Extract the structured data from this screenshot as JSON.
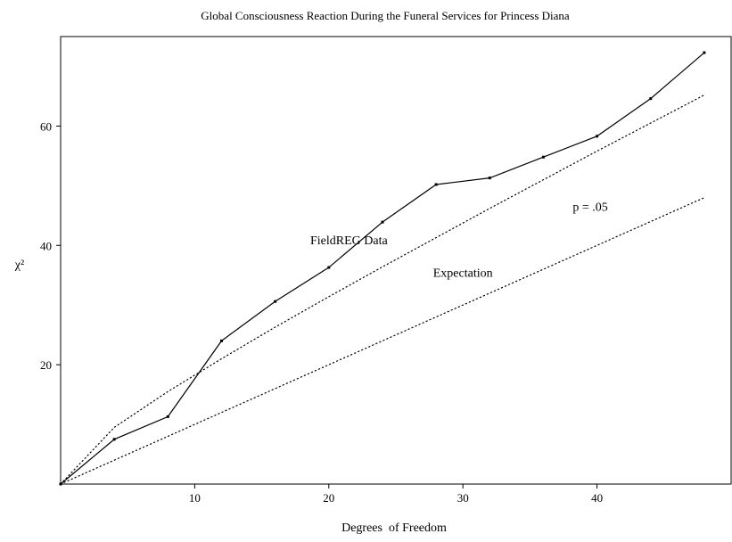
{
  "chart_data": {
    "type": "line",
    "title": "Global Consciousness Reaction During the Funeral Services for Princess Diana",
    "xlabel": "Degrees  of Freedom",
    "ylabel": "χ²",
    "xlim": [
      0,
      50
    ],
    "ylim": [
      0,
      75
    ],
    "x_ticks": [
      10,
      20,
      30,
      40
    ],
    "y_ticks": [
      20,
      40,
      60
    ],
    "grid": false,
    "series": [
      {
        "name": "FieldREG Data",
        "style": "solid-with-markers",
        "x": [
          0,
          4,
          8,
          12,
          16,
          20,
          24,
          28,
          32,
          36,
          40,
          44,
          48
        ],
        "y": [
          0,
          7.5,
          11.3,
          24.0,
          30.6,
          36.3,
          43.9,
          50.2,
          51.3,
          54.8,
          58.3,
          64.6,
          72.3
        ]
      },
      {
        "name": "p = .05",
        "style": "dotted",
        "x": [
          0,
          4,
          8,
          12,
          16,
          20,
          24,
          28,
          32,
          36,
          40,
          44,
          48
        ],
        "y": [
          0,
          9.5,
          15.5,
          21.0,
          26.3,
          31.4,
          36.4,
          41.3,
          46.2,
          51.0,
          55.8,
          60.5,
          65.2
        ]
      },
      {
        "name": "Expectation",
        "style": "dotted",
        "x": [
          0,
          48
        ],
        "y": [
          0,
          48
        ]
      }
    ],
    "annotations": [
      {
        "text": "FieldREG Data",
        "x": 21.5,
        "y": 40.2
      },
      {
        "text": "p = .05",
        "x": 39.5,
        "y": 45.8
      },
      {
        "text": "Expectation",
        "x": 30,
        "y": 34.7
      }
    ]
  }
}
